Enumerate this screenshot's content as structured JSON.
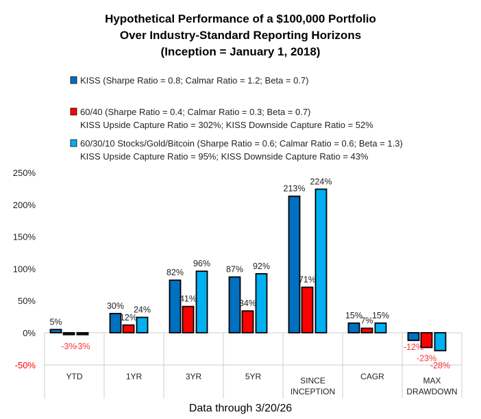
{
  "chart_data": {
    "type": "bar",
    "title": [
      "Hypothetical Performance of a $100,000 Portfolio",
      "Over Industry-Standard Reporting Horizons",
      "(Inception = January 1, 2018)"
    ],
    "categories": [
      [
        "YTD"
      ],
      [
        "1YR"
      ],
      [
        "3YR"
      ],
      [
        "5YR"
      ],
      [
        "SINCE",
        "INCEPTION"
      ],
      [
        "CAGR"
      ],
      [
        "MAX",
        "DRAWDOWN"
      ]
    ],
    "series": [
      {
        "name": "KISS",
        "legend": [
          "KISS (Sharpe Ratio = 0.8; Calmar Ratio = 1.2; Beta = 0.7)"
        ],
        "color": "#0070C0",
        "values": [
          5,
          30,
          82,
          87,
          213,
          15,
          -12
        ]
      },
      {
        "name": "60/40",
        "legend": [
          "60/40 (Sharpe Ratio = 0.4; Calmar Ratio = 0.3; Beta = 0.7)",
          "KISS Upside Capture Ratio = 302%; KISS Downside Capture Ratio = 52%"
        ],
        "color": "#FF0000",
        "values": [
          -3,
          12,
          41,
          34,
          71,
          7,
          -23
        ]
      },
      {
        "name": "60/30/10 Stocks/Gold/Bitcoin",
        "legend": [
          "60/30/10 Stocks/Gold/Bitcoin (Sharpe Ratio = 0.6; Calmar Ratio = 0.6; Beta = 1.3)",
          "KISS Upside Capture Ratio = 95%; KISS Downside Capture Ratio = 43%"
        ],
        "color": "#00B0F0",
        "values": [
          -3,
          24,
          96,
          92,
          224,
          15,
          -28
        ]
      }
    ],
    "negative_label_color": "#FF3333",
    "yticks": [
      "250%",
      "200%",
      "150%",
      "100%",
      "50%",
      "0%",
      "-50%"
    ],
    "ytick_values": [
      250,
      200,
      150,
      100,
      50,
      0,
      -50
    ],
    "ylim": [
      -50,
      250
    ],
    "xlabel": "",
    "ylabel": "",
    "grid": false,
    "legend_position": "top",
    "footnote": "Data through 3/20/26"
  }
}
